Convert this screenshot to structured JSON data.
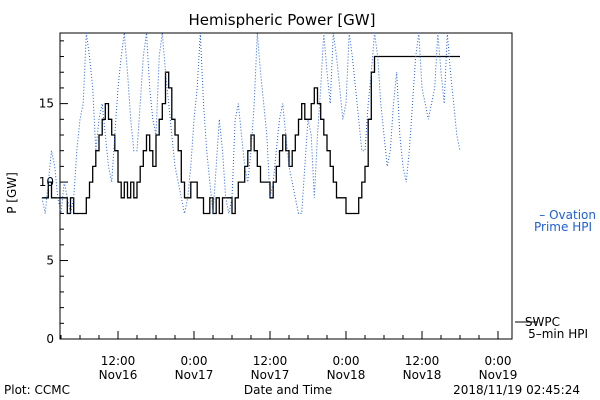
{
  "footer": {
    "plot_credit": "Plot: CCMC",
    "timestamp": "2018/11/19 02:45:24"
  },
  "colors": {
    "swpc": "#000000",
    "ovation": "#1f5fd6"
  },
  "chart_data": {
    "type": "line",
    "title": "Hemispheric Power [GW]",
    "xlabel": "Date and Time",
    "ylabel": "P [GW]",
    "ylim": [
      0,
      19.5
    ],
    "y_ticks": [
      0,
      5,
      10,
      15
    ],
    "x_range_hours": [
      0,
      66
    ],
    "x_ticks": [
      {
        "hour": 12,
        "time": "12:00",
        "date": "Nov16"
      },
      {
        "hour": 24,
        "time": "0:00",
        "date": "Nov17"
      },
      {
        "hour": 36,
        "time": "12:00",
        "date": "Nov17"
      },
      {
        "hour": 48,
        "time": "0:00",
        "date": "Nov18"
      },
      {
        "hour": 60,
        "time": "12:00",
        "date": "Nov18"
      },
      {
        "hour": 72,
        "time": "0:00",
        "date": "Nov19"
      }
    ],
    "legend": {
      "ovation_line1": "– Ovation",
      "ovation_line2": "Prime HPI",
      "swpc_line1": "SWPC",
      "swpc_line2": "5–min HPI"
    },
    "grid": false,
    "series": [
      {
        "name": "SWPC 5-min HPI",
        "style": "solid",
        "hours": [
          0,
          0.5,
          1,
          1.5,
          2,
          2.5,
          3,
          3.5,
          4,
          4.5,
          5,
          5.5,
          6,
          6.5,
          7,
          7.5,
          8,
          8.5,
          9,
          9.5,
          10,
          10.5,
          11,
          11.5,
          12,
          12.5,
          13,
          13.5,
          14,
          14.5,
          15,
          15.5,
          16,
          16.5,
          17,
          17.5,
          18,
          18.5,
          19,
          19.5,
          20,
          20.5,
          21,
          21.5,
          22,
          22.5,
          23,
          23.5,
          24,
          24.5,
          25,
          25.5,
          26,
          26.5,
          27,
          27.5,
          28,
          28.5,
          29,
          29.5,
          30,
          30.5,
          31,
          31.5,
          32,
          32.5,
          33,
          33.5,
          34,
          34.5,
          35,
          35.5,
          36,
          36.5,
          37,
          37.5,
          38,
          38.5,
          39,
          39.5,
          40,
          40.5,
          41,
          41.5,
          42,
          42.5,
          43,
          43.5,
          44,
          44.5,
          45,
          45.5,
          46,
          46.5,
          47,
          47.5,
          48,
          48.5,
          49,
          49.5,
          50,
          50.5,
          51,
          51.5,
          52,
          52.5,
          53,
          53.5,
          54,
          54.5,
          55,
          55.5,
          56,
          56.5,
          57,
          57.5,
          58,
          58.5,
          59,
          59.5,
          60,
          60.5,
          61,
          61.5,
          62,
          62.5,
          63,
          63.5,
          64,
          64.5,
          65,
          65.5,
          66
        ],
        "values": [
          9,
          9,
          10,
          9,
          9,
          9,
          9,
          9,
          8,
          9,
          8,
          8,
          8,
          8,
          9,
          10,
          11,
          12,
          13,
          14,
          15,
          14,
          13,
          12,
          10,
          9,
          10,
          9,
          10,
          9,
          10,
          11,
          12,
          13,
          12,
          11,
          13,
          14,
          15,
          17,
          16,
          14,
          13,
          12,
          10,
          9,
          9,
          10,
          10,
          9,
          9,
          8,
          8,
          9,
          8,
          9,
          8,
          9,
          9,
          9,
          8,
          9,
          10,
          10,
          11,
          12,
          13,
          12,
          11,
          10,
          10,
          10,
          9,
          10,
          11,
          12,
          13,
          12,
          11,
          12,
          13,
          14,
          15,
          14,
          14,
          15,
          16,
          15,
          14,
          13,
          12,
          11,
          10,
          9,
          9,
          9,
          8,
          8,
          8,
          8,
          9,
          10,
          11,
          14,
          17,
          18,
          18,
          18,
          18,
          18,
          18,
          18,
          18,
          18,
          18,
          18,
          18,
          18,
          18,
          18,
          18,
          18,
          18,
          18,
          18,
          18,
          18,
          18,
          18,
          18,
          18,
          18,
          18
        ]
      },
      {
        "name": "Ovation Prime HPI",
        "style": "dotted",
        "hours": [
          0,
          0.5,
          1,
          1.5,
          2,
          2.5,
          3,
          3.5,
          4,
          4.5,
          5,
          5.5,
          6,
          6.5,
          7,
          7.5,
          8,
          8.5,
          9,
          9.5,
          10,
          10.5,
          11,
          11.5,
          12,
          12.5,
          13,
          13.5,
          14,
          14.5,
          15,
          15.5,
          16,
          16.5,
          17,
          17.5,
          18,
          18.5,
          19,
          19.5,
          20,
          20.5,
          21,
          21.5,
          22,
          22.5,
          23,
          23.5,
          24,
          24.5,
          25,
          25.5,
          26,
          26.5,
          27,
          27.5,
          28,
          28.5,
          29,
          29.5,
          30,
          30.5,
          31,
          31.5,
          32,
          32.5,
          33,
          33.5,
          34,
          34.5,
          35,
          35.5,
          36,
          36.5,
          37,
          37.5,
          38,
          38.5,
          39,
          39.5,
          40,
          40.5,
          41,
          41.5,
          42,
          42.5,
          43,
          43.5,
          44,
          44.5,
          45,
          45.5,
          46,
          46.5,
          47,
          47.5,
          48,
          48.5,
          49,
          49.5,
          50,
          50.5,
          51,
          51.5,
          52,
          52.5,
          53,
          53.5,
          54,
          54.5,
          55,
          55.5,
          56,
          56.5,
          57,
          57.5,
          58,
          58.5,
          59,
          59.5,
          60,
          60.5,
          61,
          61.5,
          62,
          62.5,
          63,
          63.5,
          64,
          64.5,
          65,
          65.5,
          66
        ],
        "values": [
          9,
          8,
          10,
          12,
          11,
          9,
          8,
          10,
          9,
          8,
          9,
          12,
          14,
          15,
          19.5,
          18,
          16,
          12,
          14,
          15,
          13,
          11,
          10,
          13,
          16,
          18,
          19.5,
          17,
          14,
          12,
          12,
          15,
          18,
          19.5,
          16,
          14,
          13,
          18,
          19.5,
          17,
          15,
          13,
          11,
          10,
          9,
          8,
          9,
          11,
          14,
          16,
          19.5,
          15,
          12,
          10,
          8,
          11,
          14,
          12,
          9,
          8,
          9,
          14,
          15,
          13,
          11,
          10,
          12,
          15,
          19.5,
          17,
          15,
          13,
          9,
          10,
          12,
          14,
          15,
          13,
          11,
          10,
          9,
          8,
          8,
          11,
          14,
          13,
          9,
          13,
          16,
          19.5,
          17,
          15,
          19.5,
          18,
          16,
          14,
          15,
          19.5,
          18,
          16,
          14,
          12,
          12,
          15,
          17,
          19.5,
          18,
          15,
          13,
          11,
          12,
          15,
          17,
          13,
          11,
          10,
          12,
          15,
          18,
          19.5,
          16,
          15,
          14,
          15,
          16,
          19.5,
          17,
          15,
          19.5,
          17,
          15,
          13,
          12
        ]
      }
    ]
  }
}
